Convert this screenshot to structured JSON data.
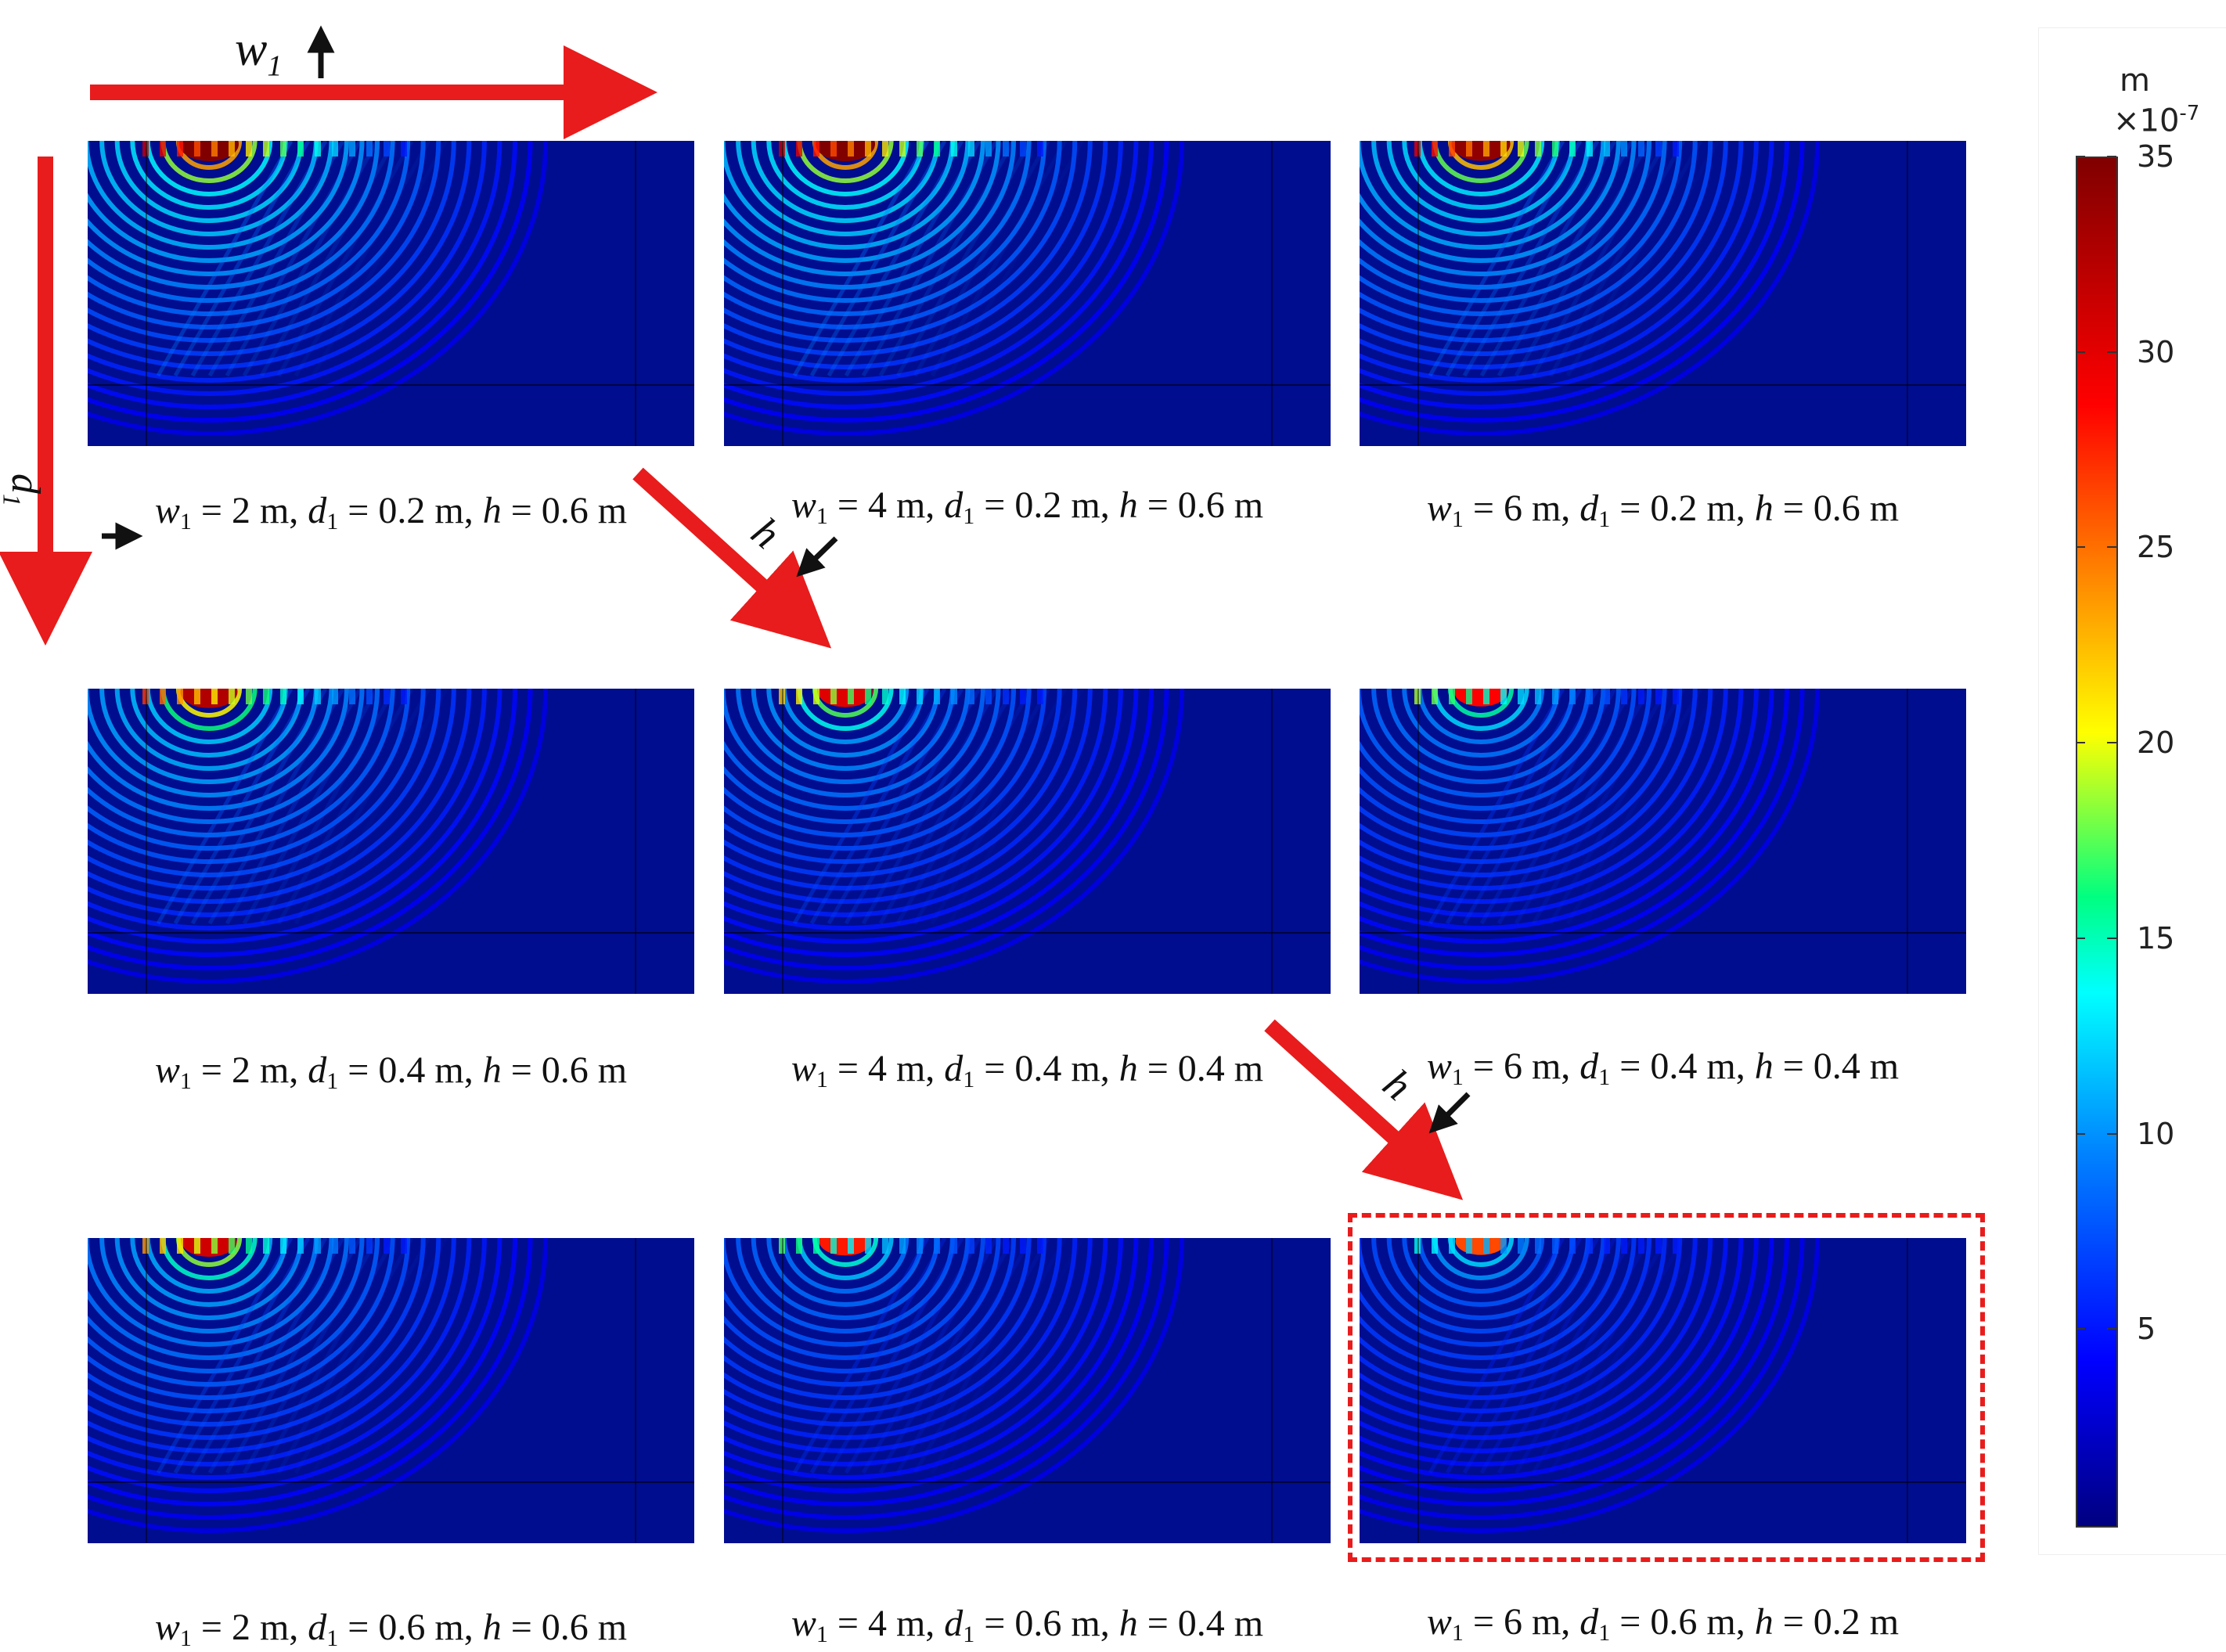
{
  "panels": [
    {
      "row": 0,
      "col": 0,
      "w1": "2 m",
      "d1": "0.2 m",
      "h": "0.6 m",
      "intensity": 1.0
    },
    {
      "row": 0,
      "col": 1,
      "w1": "4 m",
      "d1": "0.2 m",
      "h": "0.6 m",
      "intensity": 1.0
    },
    {
      "row": 0,
      "col": 2,
      "w1": "6 m",
      "d1": "0.2 m",
      "h": "0.6 m",
      "intensity": 0.95
    },
    {
      "row": 1,
      "col": 0,
      "w1": "2 m",
      "d1": "0.4 m",
      "h": "0.6 m",
      "intensity": 0.85
    },
    {
      "row": 1,
      "col": 1,
      "w1": "4 m",
      "d1": "0.4 m",
      "h": "0.4 m",
      "intensity": 0.7
    },
    {
      "row": 1,
      "col": 2,
      "w1": "6 m",
      "d1": "0.4 m",
      "h": "0.4 m",
      "intensity": 0.6
    },
    {
      "row": 2,
      "col": 0,
      "w1": "2 m",
      "d1": "0.6 m",
      "h": "0.6 m",
      "intensity": 0.75
    },
    {
      "row": 2,
      "col": 1,
      "w1": "4 m",
      "d1": "0.6 m",
      "h": "0.4 m",
      "intensity": 0.55
    },
    {
      "row": 2,
      "col": 2,
      "w1": "6 m",
      "d1": "0.6 m",
      "h": "0.2 m",
      "intensity": 0.45
    }
  ],
  "axis_labels": {
    "w1": "w",
    "w1_sub": "1",
    "d1": "d",
    "d1_sub": "1",
    "h": "h"
  },
  "colorbar": {
    "unit": "m",
    "scale_base": "×10",
    "scale_exp": "-7",
    "ticks": [
      "35",
      "30",
      "25",
      "20",
      "15",
      "10",
      "5"
    ],
    "tick_values": [
      35,
      30,
      25,
      20,
      15,
      10,
      5
    ],
    "min": 0,
    "max": 35
  },
  "colors": {
    "arrow": "#e81c1c",
    "panel_bg": "#000d8f",
    "highlight": "#e81c1c"
  }
}
